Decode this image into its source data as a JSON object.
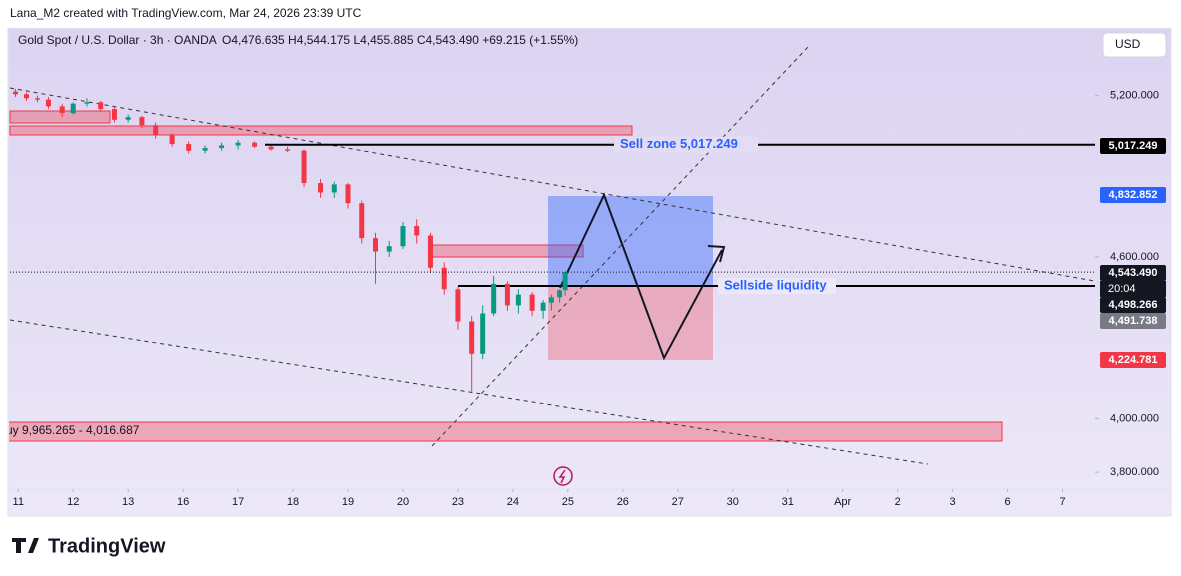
{
  "header": {
    "attribution": "Lana_M2 created with TradingView.com, Mar 24, 2026 23:39 UTC",
    "currency_button": "USD"
  },
  "footer": {
    "logo": "TradingView"
  },
  "chart_data": {
    "type": "candlestick",
    "title": "Gold Spot / U.S. Dollar · 3h · OANDA",
    "ohlc_summary": "O4,476.635 H4,544.175 L4,455.885 C4,543.490 +69.215 (+1.55%)",
    "x": [
      -0.05,
      0.15,
      0.35,
      0.55,
      0.8,
      1.0,
      1.25,
      1.5,
      1.75,
      2.0,
      2.25,
      2.5,
      2.8,
      3.1,
      3.4,
      3.7,
      4.0,
      4.3,
      4.6,
      4.9,
      5.2,
      5.5,
      5.75,
      6.0,
      6.25,
      6.5,
      6.75,
      7.0,
      7.25,
      7.5,
      7.75,
      8.0,
      8.25,
      8.45,
      8.65,
      8.9,
      9.1,
      9.35,
      9.55,
      9.7,
      9.85,
      9.95
    ],
    "open": [
      5215,
      5205,
      5190,
      5185,
      5160,
      5135,
      5170,
      5175,
      5150,
      5110,
      5120,
      5090,
      5055,
      5020,
      4995,
      5005,
      5015,
      5025,
      5010,
      5000,
      4995,
      4875,
      4840,
      4870,
      4800,
      4670,
      4620,
      4640,
      4715,
      4680,
      4560,
      4480,
      4360,
      4240,
      4390,
      4500,
      4420,
      4460,
      4400,
      4430,
      4450,
      4476.635
    ],
    "high": [
      5225,
      5212,
      5200,
      5195,
      5170,
      5175,
      5190,
      5180,
      5160,
      5130,
      5125,
      5100,
      5060,
      5030,
      5015,
      5025,
      5035,
      5030,
      5020,
      5010,
      5000,
      4890,
      4880,
      4875,
      4810,
      4690,
      4660,
      4730,
      4740,
      4690,
      4580,
      4490,
      4380,
      4420,
      4530,
      4510,
      4480,
      4470,
      4440,
      4460,
      4480,
      4544.175
    ],
    "low": [
      5195,
      5180,
      5175,
      5150,
      5120,
      5130,
      5160,
      5140,
      5100,
      5100,
      5080,
      5040,
      5010,
      4985,
      4985,
      4995,
      5000,
      5005,
      4995,
      4990,
      4860,
      4820,
      4820,
      4780,
      4650,
      4500,
      4600,
      4630,
      4650,
      4540,
      4460,
      4330,
      4100,
      4220,
      4380,
      4400,
      4390,
      4380,
      4370,
      4400,
      4430,
      4455.885
    ],
    "close": [
      5205,
      5190,
      5185,
      5160,
      5135,
      5170,
      5175,
      5150,
      5110,
      5120,
      5090,
      5055,
      5020,
      4995,
      5005,
      5015,
      5025,
      5010,
      5000,
      4995,
      4875,
      4840,
      4870,
      4800,
      4670,
      4620,
      4640,
      4715,
      4680,
      4560,
      4480,
      4360,
      4240,
      4390,
      4500,
      4420,
      4460,
      4400,
      4430,
      4450,
      4476,
      4543.49
    ],
    "up_color": "#089981",
    "down_color": "#f23645",
    "xlim": [
      -0.15,
      19.5
    ],
    "xticks": [
      {
        "value": 0,
        "label": "11"
      },
      {
        "value": 1,
        "label": "12"
      },
      {
        "value": 2,
        "label": "13"
      },
      {
        "value": 3,
        "label": "16"
      },
      {
        "value": 4,
        "label": "17"
      },
      {
        "value": 5,
        "label": "18"
      },
      {
        "value": 6,
        "label": "19"
      },
      {
        "value": 7,
        "label": "20"
      },
      {
        "value": 8,
        "label": "23"
      },
      {
        "value": 9,
        "label": "24"
      },
      {
        "value": 10,
        "label": "25"
      },
      {
        "value": 11,
        "label": "26"
      },
      {
        "value": 12,
        "label": "27"
      },
      {
        "value": 13,
        "label": "30"
      },
      {
        "value": 14,
        "label": "31"
      },
      {
        "value": 15,
        "label": "Apr"
      },
      {
        "value": 16,
        "label": "2"
      },
      {
        "value": 17,
        "label": "3"
      },
      {
        "value": 18,
        "label": "6"
      },
      {
        "value": 19,
        "label": "7"
      }
    ],
    "ylim": [
      3741,
      5444
    ],
    "yticks": [
      {
        "value": 3800,
        "label": "3,800.000"
      },
      {
        "value": 4000,
        "label": "4,000.000"
      },
      {
        "value": 4600,
        "label": "4,600.000"
      },
      {
        "value": 5200,
        "label": "5,200.000"
      }
    ],
    "price_labels": [
      {
        "value": 5017.249,
        "label": "5,017.249",
        "color": "#000000"
      },
      {
        "value": 4832.852,
        "label": "4,832.852",
        "color": "#2962ff"
      },
      {
        "value": 4543.49,
        "label": "4,543.490",
        "color": "#131722"
      },
      {
        "value": 4498.266,
        "label": "4,498.266",
        "color": "#131722"
      },
      {
        "value": 4491.738,
        "label": "4,491.738",
        "color": "#787b86"
      },
      {
        "value": 4224.781,
        "label": "4,224.781",
        "color": "#f23645"
      }
    ],
    "countdown": "20:04",
    "annotations": {
      "sell_zone": "Sell zone 5,017.249",
      "sellside": "Sellside liquidity",
      "buy_zone": "uy 9,965.265 - 4,016.687"
    }
  }
}
